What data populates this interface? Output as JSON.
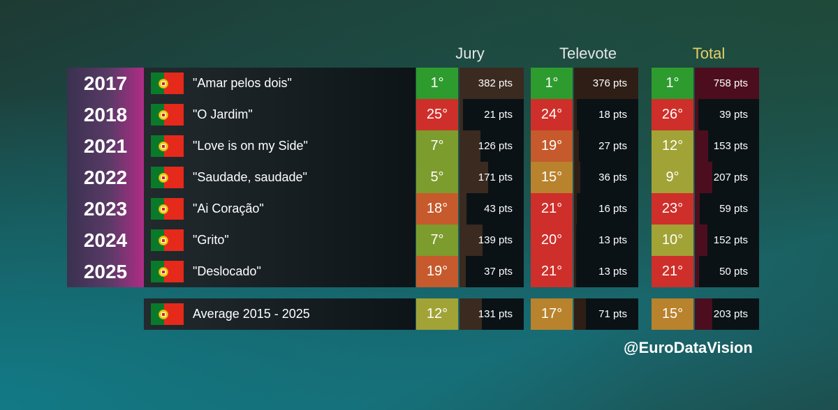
{
  "headers": {
    "jury": "Jury",
    "televote": "Televote",
    "total": "Total"
  },
  "credit": "@EuroDataVision",
  "country_flag": "portugal-flag-icon",
  "colors": {
    "rank_1": "#2e9b2e",
    "rank_good": "#7c9c2e",
    "rank_mid_good": "#a2a336",
    "rank_mid": "#b9822d",
    "rank_poor": "#c65a2c",
    "rank_bad": "#cf2f2a",
    "jury_bar": "#3a2a20",
    "tele_bar": "#2e1e16",
    "total_bar": "#4c0e1e"
  },
  "chart_data": {
    "type": "table",
    "columns": [
      "Year",
      "Song",
      "Jury rank",
      "Jury points",
      "Televote rank",
      "Televote points",
      "Total rank",
      "Total points"
    ],
    "rows": [
      {
        "year": "2017",
        "song": "\"Amar pelos dois\"",
        "jury_rank": "1°",
        "jury_pts": 382,
        "jury_label": "382 pts",
        "tele_rank": "1°",
        "tele_pts": 376,
        "tele_label": "376 pts",
        "total_rank": "1°",
        "total_pts": 758,
        "total_label": "758 pts"
      },
      {
        "year": "2018",
        "song": "\"O Jardim\"",
        "jury_rank": "25°",
        "jury_pts": 21,
        "jury_label": "21 pts",
        "tele_rank": "24°",
        "tele_pts": 18,
        "tele_label": "18 pts",
        "total_rank": "26°",
        "total_pts": 39,
        "total_label": "39 pts"
      },
      {
        "year": "2021",
        "song": "\"Love is on my Side\"",
        "jury_rank": "7°",
        "jury_pts": 126,
        "jury_label": "126 pts",
        "tele_rank": "19°",
        "tele_pts": 27,
        "tele_label": "27 pts",
        "total_rank": "12°",
        "total_pts": 153,
        "total_label": "153 pts"
      },
      {
        "year": "2022",
        "song": "\"Saudade, saudade\"",
        "jury_rank": "5°",
        "jury_pts": 171,
        "jury_label": "171 pts",
        "tele_rank": "15°",
        "tele_pts": 36,
        "tele_label": "36 pts",
        "total_rank": "9°",
        "total_pts": 207,
        "total_label": "207 pts"
      },
      {
        "year": "2023",
        "song": "\"Ai Coração\"",
        "jury_rank": "18°",
        "jury_pts": 43,
        "jury_label": "43 pts",
        "tele_rank": "21°",
        "tele_pts": 16,
        "tele_label": "16 pts",
        "total_rank": "23°",
        "total_pts": 59,
        "total_label": "59 pts"
      },
      {
        "year": "2024",
        "song": "\"Grito\"",
        "jury_rank": "7°",
        "jury_pts": 139,
        "jury_label": "139 pts",
        "tele_rank": "20°",
        "tele_pts": 13,
        "tele_label": "13 pts",
        "total_rank": "10°",
        "total_pts": 152,
        "total_label": "152 pts"
      },
      {
        "year": "2025",
        "song": "\"Deslocado\"",
        "jury_rank": "19°",
        "jury_pts": 37,
        "jury_label": "37 pts",
        "tele_rank": "21°",
        "tele_pts": 13,
        "tele_label": "13 pts",
        "total_rank": "21°",
        "total_pts": 50,
        "total_label": "50 pts"
      }
    ],
    "average": {
      "label": "Average 2015 - 2025",
      "jury_rank": "12°",
      "jury_pts": 131,
      "jury_label": "131 pts",
      "tele_rank": "17°",
      "tele_pts": 71,
      "tele_label": "71 pts",
      "total_rank": "15°",
      "total_pts": 203,
      "total_label": "203 pts"
    },
    "scale": {
      "jury_max": 382,
      "tele_max": 376,
      "total_max": 758
    }
  }
}
